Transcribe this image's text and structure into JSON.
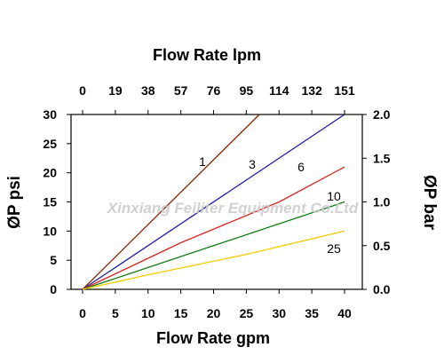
{
  "watermark": "Xinxiang Feiliter Equipment Co.Ltd",
  "chart_data": {
    "type": "line",
    "top_axis_title": "Flow Rate lpm",
    "xlabel": "Flow Rate gpm",
    "ylabel_left": "ØP psi",
    "ylabel_right": "ØP bar",
    "xlim": [
      0,
      40
    ],
    "ylim": [
      0,
      30
    ],
    "ylim_right": [
      0,
      2.0
    ],
    "x_ticks": [
      "0",
      "5",
      "10",
      "15",
      "20",
      "25",
      "30",
      "35",
      "40"
    ],
    "top_ticks": [
      "0",
      "19",
      "38",
      "57",
      "76",
      "95",
      "114",
      "132",
      "151"
    ],
    "y_ticks": [
      "0",
      "5",
      "10",
      "15",
      "20",
      "25",
      "30"
    ],
    "y_right_ticks": [
      "0.0",
      "0.5",
      "1.0",
      "1.5",
      "2.0"
    ],
    "grid": false,
    "series": [
      {
        "name": "1",
        "color": "#8B2500",
        "points": [
          [
            0,
            0
          ],
          [
            27,
            30
          ]
        ]
      },
      {
        "name": "3",
        "color": "#1F1F9C",
        "points": [
          [
            0,
            0
          ],
          [
            40,
            30
          ]
        ]
      },
      {
        "name": "6",
        "color": "#DD2222",
        "points": [
          [
            0,
            0
          ],
          [
            15,
            8
          ],
          [
            30,
            15
          ],
          [
            40,
            21
          ]
        ]
      },
      {
        "name": "10",
        "color": "#157A15",
        "points": [
          [
            0,
            0
          ],
          [
            20,
            7.5
          ],
          [
            40,
            15
          ]
        ]
      },
      {
        "name": "25",
        "color": "#F2CC00",
        "points": [
          [
            0,
            0
          ],
          [
            10,
            2.5
          ],
          [
            25,
            6
          ],
          [
            40,
            10
          ]
        ]
      }
    ]
  }
}
